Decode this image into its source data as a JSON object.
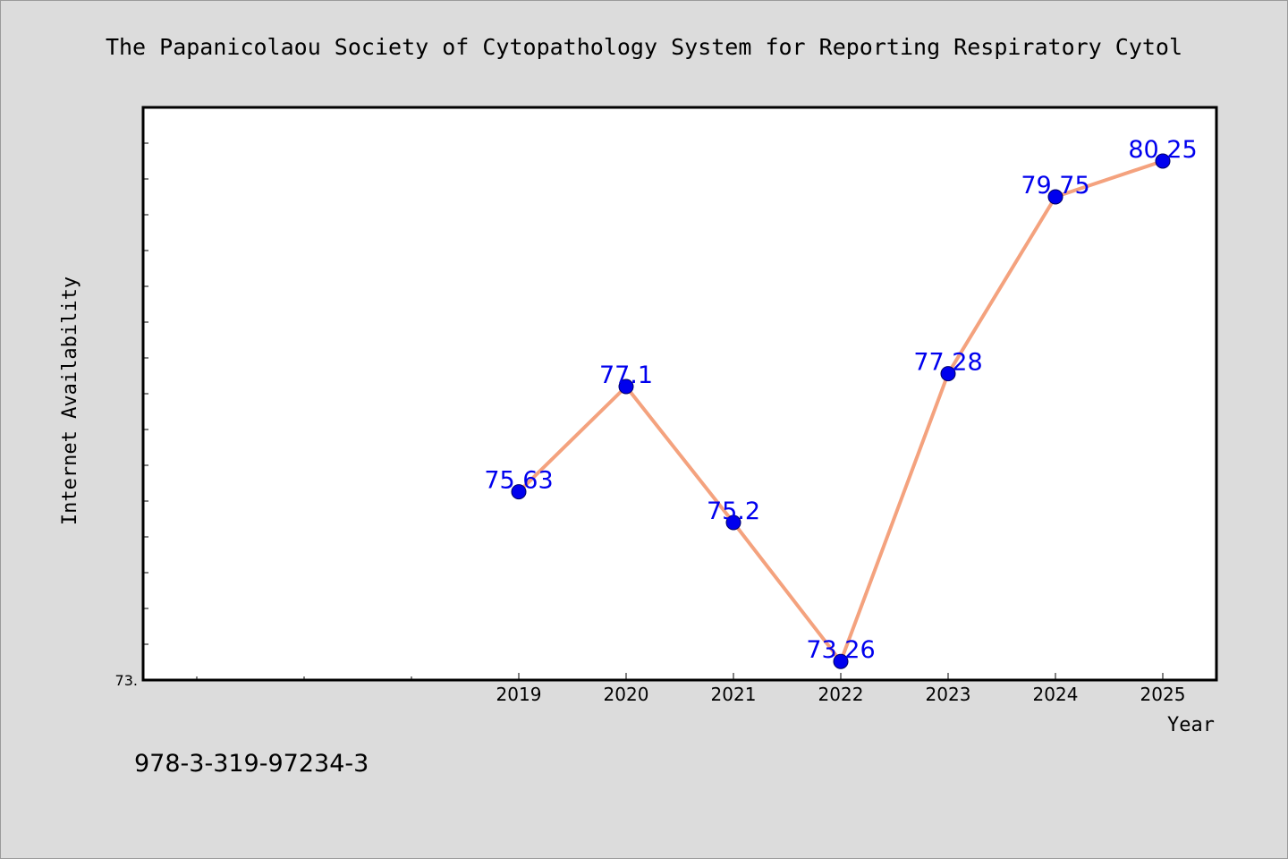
{
  "footer": {
    "isbn": "978-3-319-97234-3"
  },
  "colors": {
    "background": "#dcdcdc",
    "plot_background": "#ffffff",
    "line": "#f4a27e",
    "marker": "#0000ee",
    "label": "#0000ee"
  },
  "chart_data": {
    "type": "line",
    "title": "The Papanicolaou Society of Cytopathology System for Reporting Respiratory Cytol",
    "xlabel": "Year",
    "ylabel": "Internet Availability",
    "categories": [
      "2019",
      "2020",
      "2021",
      "2022",
      "2023",
      "2024",
      "2025"
    ],
    "x": [
      2019,
      2020,
      2021,
      2022,
      2023,
      2024,
      2025
    ],
    "series": [
      {
        "values": [
          75.63,
          77.1,
          75.2,
          73.26,
          77.28,
          79.75,
          80.25
        ]
      }
    ],
    "data_labels": [
      "75.63",
      "77.1",
      "75.2",
      "73.26",
      "77.28",
      "79.75",
      "80.25"
    ],
    "xlim": [
      2015.5,
      2025.5
    ],
    "ylim": [
      73.0,
      81.0
    ],
    "y_tick_labels": [
      "73."
    ],
    "grid": false,
    "legend": "none"
  }
}
